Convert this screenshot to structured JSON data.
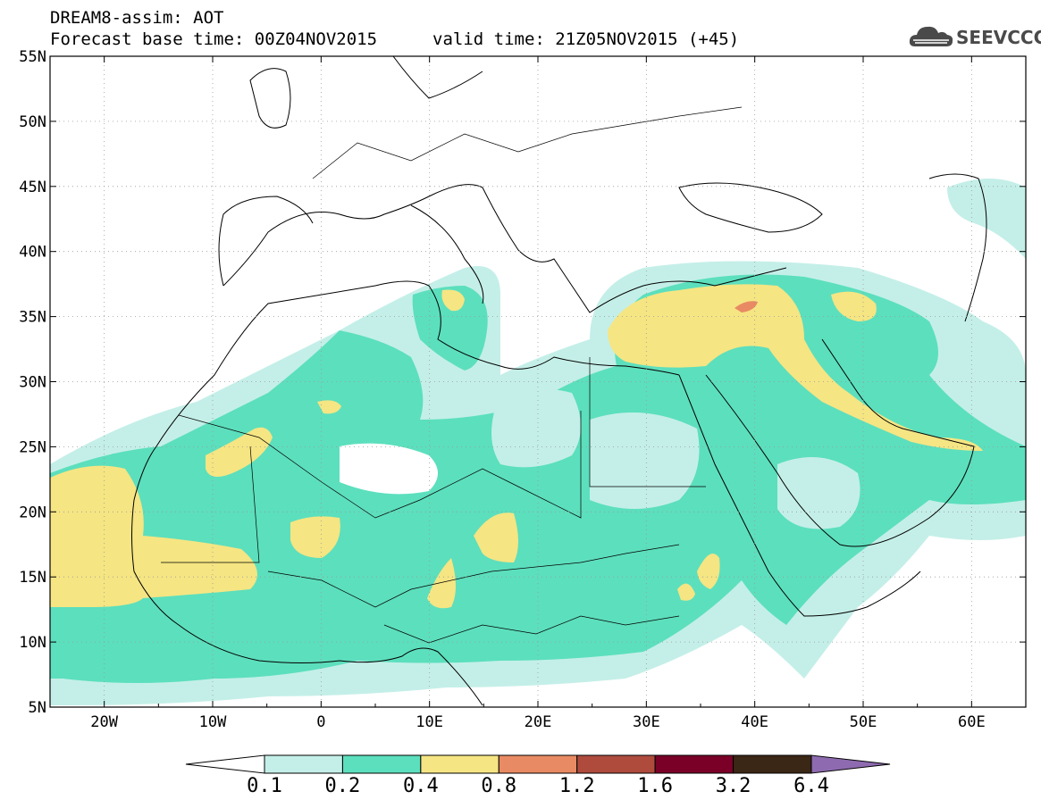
{
  "header": {
    "title": "DREAM8-assim: AOT",
    "base_time": "Forecast base time: 00Z04NOV2015",
    "valid_time": "valid time: 21Z05NOV2015 (+45)"
  },
  "logo": {
    "text": "SEEVCCC",
    "icon": "cloud-logo-icon"
  },
  "map": {
    "lat_ticks": [
      "55N",
      "50N",
      "45N",
      "40N",
      "35N",
      "30N",
      "25N",
      "20N",
      "15N",
      "10N",
      "5N"
    ],
    "lon_ticks": [
      "20W",
      "10W",
      "0",
      "10E",
      "20E",
      "30E",
      "40E",
      "50E",
      "60E"
    ],
    "lat_values": [
      55,
      50,
      45,
      40,
      35,
      30,
      25,
      20,
      15,
      10,
      5
    ],
    "lon_values": [
      -20,
      -10,
      0,
      10,
      20,
      30,
      40,
      50,
      60
    ],
    "extent": {
      "lon_min": -25,
      "lon_max": 65,
      "lat_min": 5,
      "lat_max": 55
    },
    "grid": true
  },
  "colorbar": {
    "labels": [
      "0.1",
      "0.2",
      "0.4",
      "0.8",
      "1.2",
      "1.6",
      "3.2",
      "6.4"
    ],
    "colors": [
      "#c4efe8",
      "#5cdfbd",
      "#f5e583",
      "#e88a63",
      "#ae4b3d",
      "#7a0028",
      "#3b2716",
      "#8e6bb0"
    ],
    "under_color": "#ffffff"
  }
}
